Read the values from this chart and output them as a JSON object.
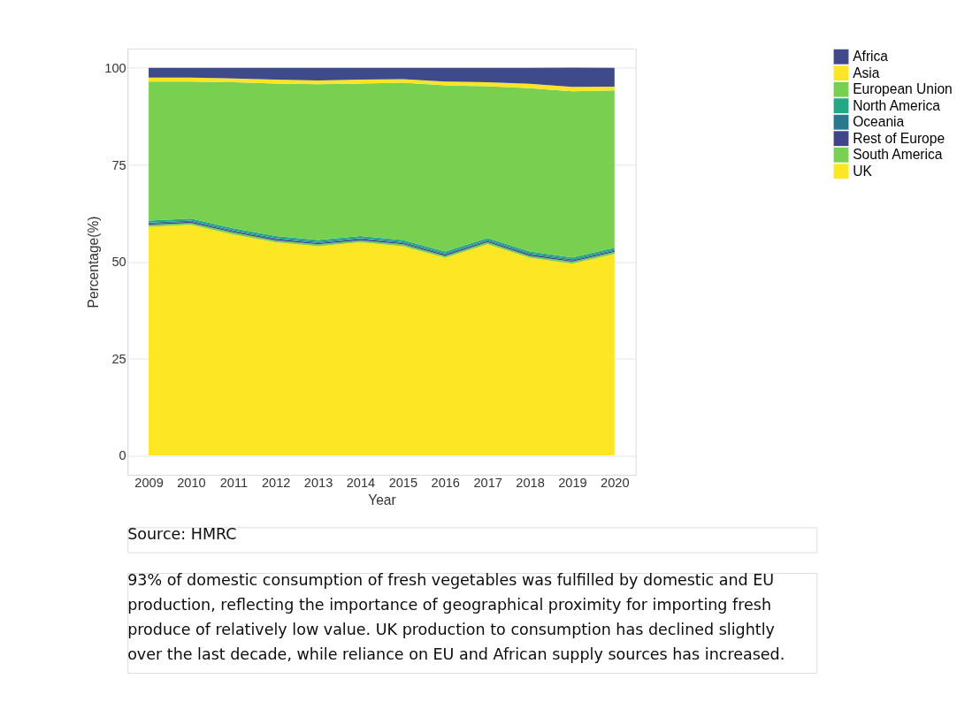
{
  "chart_data": {
    "type": "area",
    "stacked": true,
    "xlabel": "Year",
    "ylabel": "Percentage(%)",
    "categories": [
      "2009",
      "2010",
      "2011",
      "2012",
      "2013",
      "2014",
      "2015",
      "2016",
      "2017",
      "2018",
      "2019",
      "2020"
    ],
    "series": [
      {
        "name": "UK",
        "color": "#fde725",
        "values": [
          59,
          59.5,
          57,
          55,
          54,
          55,
          54,
          51,
          54.5,
          51,
          49.5,
          52
        ]
      },
      {
        "name": "South America",
        "color": "#7ad151",
        "values": [
          0.5,
          0.5,
          0.5,
          0.5,
          0.5,
          0.5,
          0.5,
          0.5,
          0.5,
          0.5,
          0.5,
          0.5
        ]
      },
      {
        "name": "Rest of Europe",
        "color": "#414487",
        "values": [
          0.3,
          0.3,
          0.3,
          0.3,
          0.3,
          0.3,
          0.3,
          0.3,
          0.3,
          0.3,
          0.3,
          0.3
        ]
      },
      {
        "name": "Oceania",
        "color": "#2a788e",
        "values": [
          0.3,
          0.3,
          0.3,
          0.3,
          0.3,
          0.3,
          0.3,
          0.3,
          0.3,
          0.3,
          0.3,
          0.3
        ]
      },
      {
        "name": "North America",
        "color": "#22a884",
        "values": [
          0.5,
          0.5,
          0.5,
          0.5,
          0.5,
          0.5,
          0.5,
          0.5,
          0.5,
          0.5,
          0.5,
          0.5
        ]
      },
      {
        "name": "European Union",
        "color": "#78cf50",
        "values": [
          35.9,
          35.4,
          37.7,
          39.4,
          40.2,
          39.4,
          40.6,
          42.9,
          39.2,
          42.2,
          42.9,
          40.6
        ]
      },
      {
        "name": "Asia",
        "color": "#fce526",
        "values": [
          1,
          1,
          1,
          1,
          1,
          1,
          0.9,
          1,
          1,
          1.1,
          1.1,
          1
        ]
      },
      {
        "name": "Africa",
        "color": "#3e4a89",
        "values": [
          2.5,
          2.5,
          2.7,
          3,
          3.2,
          3,
          2.9,
          3.5,
          3.7,
          4.1,
          5,
          4.8
        ]
      }
    ],
    "ylim": [
      -5,
      105
    ],
    "yticks": [
      0,
      25,
      50,
      75,
      100
    ],
    "grid": "y",
    "legend": "right",
    "annotations": [
      "Source: HMRC",
      "93% of domestic consumption of fresh vegetables was fulfilled by domestic and EU production, reflecting the importance of geographical proximity for importing fresh produce of relatively low value. UK production to consumption has declined slightly over the last decade, while reliance on EU and African supply sources has increased."
    ]
  }
}
